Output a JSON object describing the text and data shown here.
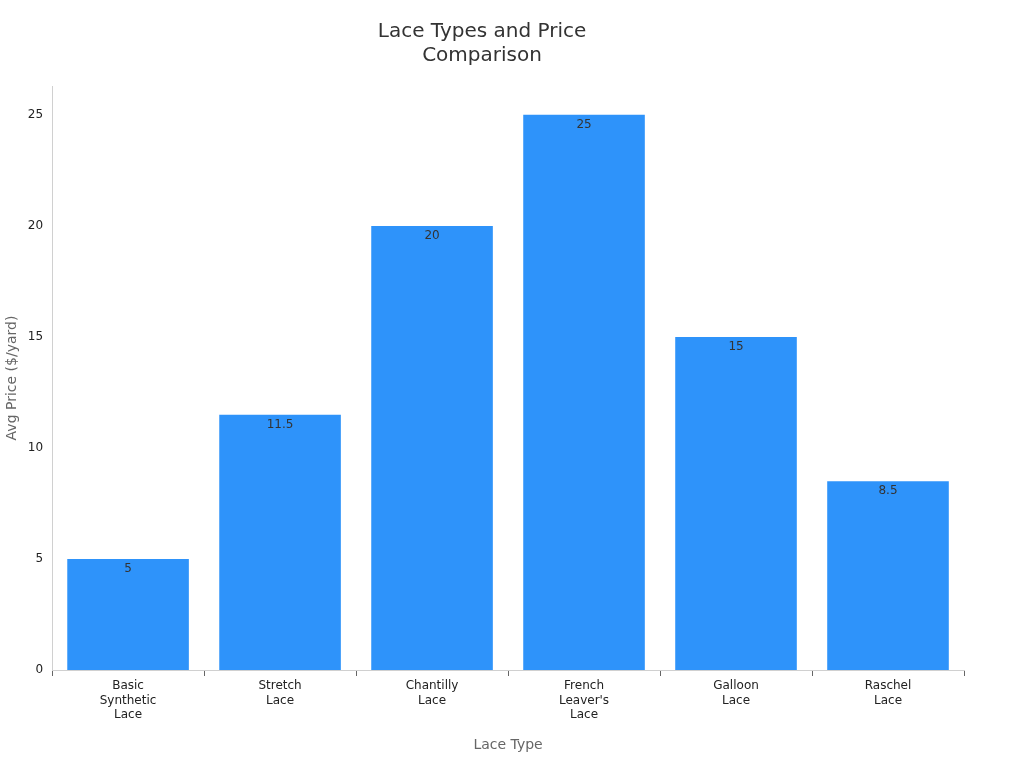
{
  "chart_data": {
    "type": "bar",
    "title": "Lace Types and Price Comparison",
    "xlabel": "Lace Type",
    "ylabel": "Avg Price ($/yard)",
    "categories": [
      "Basic Synthetic Lace",
      "Stretch Lace",
      "Chantilly Lace",
      "French Leaver's Lace",
      "Galloon Lace",
      "Raschel Lace"
    ],
    "values": [
      5,
      11.5,
      20,
      25,
      15,
      8.5
    ],
    "color": "#2e93fa",
    "ylim": [
      0,
      26.3
    ],
    "yticks": [
      0,
      5,
      10,
      15,
      20,
      25
    ],
    "grid": false,
    "legend": false,
    "data_labels": true
  }
}
